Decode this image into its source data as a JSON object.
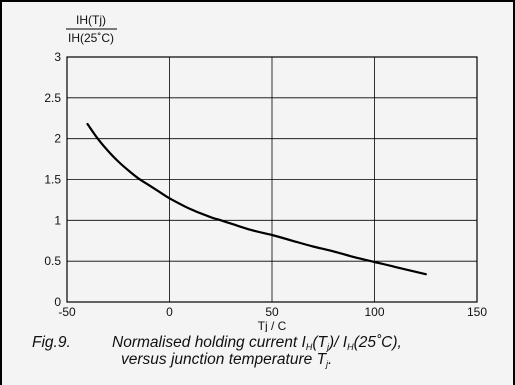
{
  "chart_data": {
    "type": "line",
    "ylabel_numerator": "IH(Tj)",
    "ylabel_denominator": "IH(25˚C)",
    "xlabel": "Tj / C",
    "xlim": [
      -50,
      150
    ],
    "ylim": [
      0,
      3
    ],
    "x_ticks": [
      "-50",
      "0",
      "50",
      "100",
      "150"
    ],
    "y_ticks": [
      "0",
      "0.5",
      "1",
      "1.5",
      "2",
      "2.5",
      "3"
    ],
    "x_tick_values": [
      -50,
      0,
      50,
      100,
      150
    ],
    "y_tick_values": [
      0,
      0.5,
      1,
      1.5,
      2,
      2.5,
      3
    ],
    "grid": true,
    "series": [
      {
        "x": [
          -40,
          -35,
          -30,
          -25,
          -20,
          -15,
          -10,
          -5,
          0,
          10,
          20,
          25,
          30,
          40,
          50,
          60,
          70,
          80,
          90,
          100,
          110,
          125
        ],
        "y": [
          2.18,
          2.0,
          1.85,
          1.72,
          1.61,
          1.51,
          1.43,
          1.35,
          1.27,
          1.14,
          1.04,
          1.0,
          0.96,
          0.88,
          0.82,
          0.75,
          0.68,
          0.62,
          0.55,
          0.49,
          0.43,
          0.34
        ]
      }
    ],
    "line_color": "#000000",
    "grid_color": "#000000"
  },
  "caption": {
    "figure_number": "Fig.9.",
    "line1_text_a": "Normalised holding current I",
    "line1_sub_a": "H",
    "line1_text_b": "(T",
    "line1_sub_b": "j",
    "line1_text_c": ")/ I",
    "line1_sub_c": "H",
    "line1_text_d": "(25˚C),",
    "line2_text_a": "versus junction temperature T",
    "line2_sub_a": "j",
    "line2_text_b": "."
  }
}
